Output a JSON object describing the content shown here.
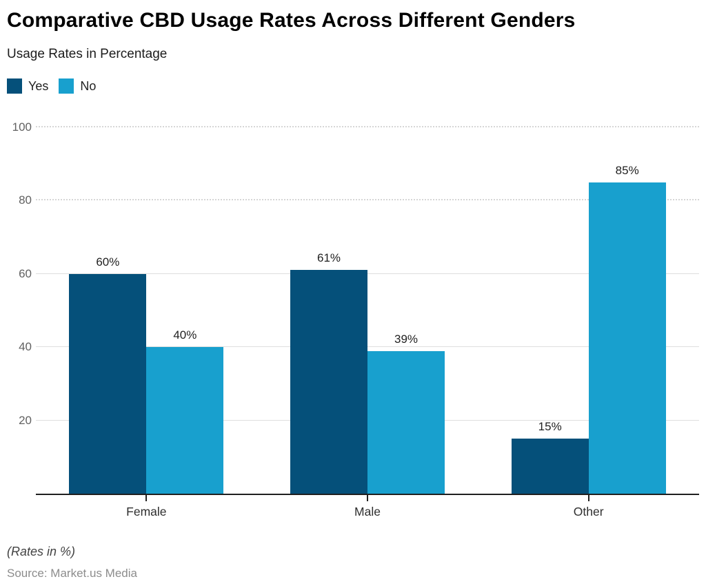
{
  "header": {
    "title": "Comparative CBD Usage Rates Across Different Genders",
    "subtitle": "Usage Rates in Percentage"
  },
  "legend": [
    {
      "label": "Yes",
      "color": "#05507a"
    },
    {
      "label": "No",
      "color": "#18a0ce"
    }
  ],
  "chart_data": {
    "type": "bar",
    "title": "Comparative CBD Usage Rates Across Different Genders",
    "subtitle": "Usage Rates in Percentage",
    "categories": [
      "Female",
      "Male",
      "Other"
    ],
    "series": [
      {
        "name": "Yes",
        "color": "#05507a",
        "values": [
          60,
          61,
          15
        ]
      },
      {
        "name": "No",
        "color": "#18a0ce",
        "values": [
          40,
          39,
          85
        ]
      }
    ],
    "data_labels": [
      [
        "60%",
        "40%"
      ],
      [
        "61%",
        "39%"
      ],
      [
        "15%",
        "85%"
      ]
    ],
    "xlabel": "",
    "ylabel": "",
    "ylim": [
      0,
      100
    ],
    "yticks": [
      20,
      40,
      60,
      80,
      100
    ],
    "grid": "horizontal",
    "legend_position": "top-left"
  },
  "footer": {
    "note": "(Rates in %)",
    "source": "Source: Market.us Media"
  }
}
